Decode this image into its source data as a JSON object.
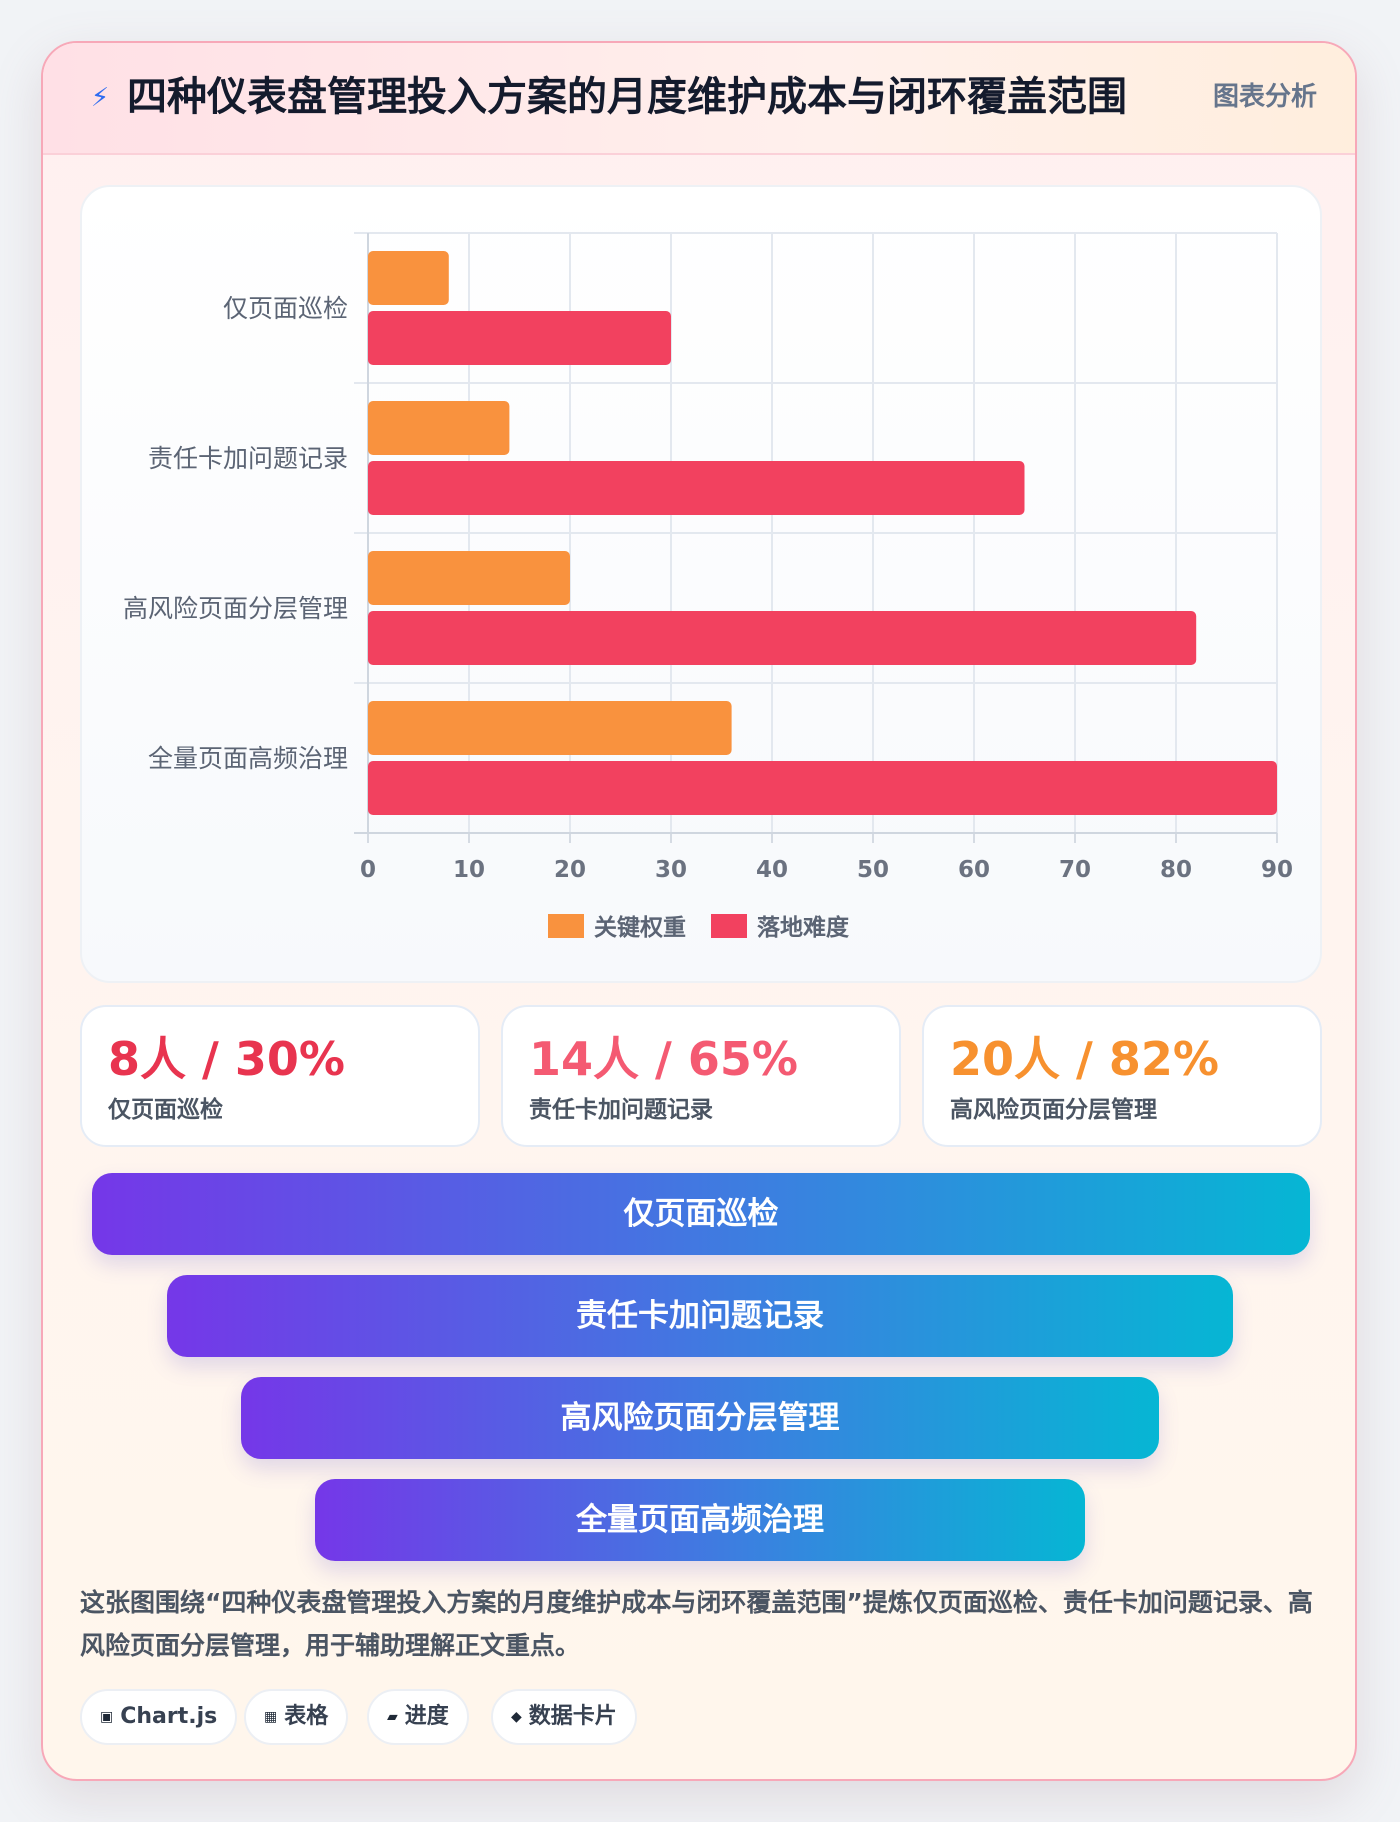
{
  "header": {
    "icon": "lightning-icon",
    "title": "四种仪表盘管理投入方案的月度维护成本与闭环覆盖范围",
    "badge": "图表分析"
  },
  "chart_data": {
    "type": "bar",
    "orientation": "horizontal",
    "categories": [
      "仅页面巡检",
      "责任卡加问题记录",
      "高风险页面分层管理",
      "全量页面高频治理"
    ],
    "series": [
      {
        "name": "关键权重",
        "color": "#f9923e",
        "values": [
          8,
          14,
          20,
          36
        ]
      },
      {
        "name": "落地难度",
        "color": "#f2415f",
        "values": [
          30,
          65,
          82,
          90
        ]
      }
    ],
    "xlim": [
      0,
      90
    ],
    "xticks": [
      "0",
      "10",
      "20",
      "30",
      "40",
      "50",
      "60",
      "70",
      "80",
      "90"
    ],
    "grid": true,
    "legend_position": "bottom"
  },
  "stats": [
    {
      "value": "8人 / 30%",
      "label": "仅页面巡检",
      "color": "#e8344f"
    },
    {
      "value": "14人 / 65%",
      "label": "责任卡加问题记录",
      "color": "#f45a72"
    },
    {
      "value": "20人 / 82%",
      "label": "高风险页面分层管理",
      "color": "#f7912f"
    }
  ],
  "funnel": [
    {
      "label": "仅页面巡检"
    },
    {
      "label": "责任卡加问题记录"
    },
    {
      "label": "高风险页面分层管理"
    },
    {
      "label": "全量页面高频治理"
    }
  ],
  "description": "这张图围绕“四种仪表盘管理投入方案的月度维护成本与闭环覆盖范围”提炼仅页面巡检、责任卡加问题记录、高风险页面分层管理，用于辅助理解正文重点。",
  "tags": [
    {
      "icon": "chip-icon",
      "glyph": "▣",
      "label": "Chart.js"
    },
    {
      "icon": "table-icon",
      "glyph": "▦",
      "label": "表格"
    },
    {
      "icon": "progress-icon",
      "glyph": "▰",
      "label": "进度"
    },
    {
      "icon": "diamond-icon",
      "glyph": "◆",
      "label": "数据卡片"
    }
  ]
}
